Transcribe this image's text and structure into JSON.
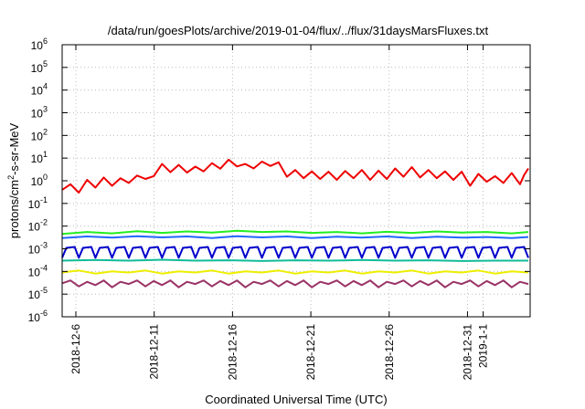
{
  "chart_data": {
    "type": "line",
    "title": "/data/run/goesPlots/archive/2019-01-04/flux/../flux/31daysMarsFluxes.txt",
    "xlabel": "Coordinated Universal Time (UTC)",
    "ylabel": {
      "base": "protons/cm",
      "sup": "2",
      "rest": "-s-sr-MeV"
    },
    "yscale": "log",
    "ylim": [
      1e-06,
      1000000.0
    ],
    "xlim": [
      "2018-12-05T03:00",
      "2019-01-04T00:00"
    ],
    "grid": true,
    "y_ticks": [
      {
        "value": 1e-06,
        "mantissa": "10",
        "exp": "-6"
      },
      {
        "value": 1e-05,
        "mantissa": "10",
        "exp": "-5"
      },
      {
        "value": 0.0001,
        "mantissa": "10",
        "exp": "-4"
      },
      {
        "value": 0.001,
        "mantissa": "10",
        "exp": "-3"
      },
      {
        "value": 0.01,
        "mantissa": "10",
        "exp": "-2"
      },
      {
        "value": 0.1,
        "mantissa": "10",
        "exp": "-1"
      },
      {
        "value": 1.0,
        "mantissa": "10",
        "exp": "0"
      },
      {
        "value": 10.0,
        "mantissa": "10",
        "exp": "1"
      },
      {
        "value": 100.0,
        "mantissa": "10",
        "exp": "2"
      },
      {
        "value": 1000.0,
        "mantissa": "10",
        "exp": "3"
      },
      {
        "value": 10000.0,
        "mantissa": "10",
        "exp": "4"
      },
      {
        "value": 100000.0,
        "mantissa": "10",
        "exp": "5"
      },
      {
        "value": 1000000.0,
        "mantissa": "10",
        "exp": "6"
      }
    ],
    "x_ticks": [
      {
        "date": "2018-12-06",
        "label": "2018-12-6"
      },
      {
        "date": "2018-12-11",
        "label": "2018-12-11"
      },
      {
        "date": "2018-12-16",
        "label": "2018-12-16"
      },
      {
        "date": "2018-12-21",
        "label": "2018-12-21"
      },
      {
        "date": "2018-12-26",
        "label": "2018-12-26"
      },
      {
        "date": "2018-12-31",
        "label": "2018-12-31"
      },
      {
        "date": "2019-01-01",
        "label": "2019-1-1"
      }
    ],
    "series": [
      {
        "color": "#ee0000",
        "width": 2,
        "values": [
          [
            0,
            0.4
          ],
          [
            2,
            0.7
          ],
          [
            4,
            0.3
          ],
          [
            6,
            1.1
          ],
          [
            8,
            0.5
          ],
          [
            10,
            1.4
          ],
          [
            12,
            0.6
          ],
          [
            14,
            1.3
          ],
          [
            16,
            0.8
          ],
          [
            18,
            1.7
          ],
          [
            20,
            1.2
          ],
          [
            22,
            1.6
          ],
          [
            24,
            5.5
          ],
          [
            26,
            2.4
          ],
          [
            28,
            5.0
          ],
          [
            30,
            2.3
          ],
          [
            32,
            4.2
          ],
          [
            34,
            2.6
          ],
          [
            36,
            6.0
          ],
          [
            38,
            3.4
          ],
          [
            40,
            8.5
          ],
          [
            42,
            4.3
          ],
          [
            44,
            5.5
          ],
          [
            46,
            3.5
          ],
          [
            48,
            7.0
          ],
          [
            50,
            4.5
          ],
          [
            52,
            6.5
          ],
          [
            54,
            1.5
          ],
          [
            56,
            3.0
          ],
          [
            58,
            1.3
          ],
          [
            60,
            2.6
          ],
          [
            62,
            1.2
          ],
          [
            64,
            2.5
          ],
          [
            66,
            1.1
          ],
          [
            68,
            2.7
          ],
          [
            70,
            1.3
          ],
          [
            72,
            3.0
          ],
          [
            74,
            1.1
          ],
          [
            76,
            2.8
          ],
          [
            78,
            1.2
          ],
          [
            80,
            3.5
          ],
          [
            82,
            1.5
          ],
          [
            84,
            4.0
          ],
          [
            86,
            1.4
          ],
          [
            88,
            3.0
          ],
          [
            90,
            1.3
          ],
          [
            92,
            2.6
          ],
          [
            94,
            1.1
          ],
          [
            96,
            2.5
          ],
          [
            98,
            0.6
          ],
          [
            100,
            2.0
          ],
          [
            102,
            0.9
          ],
          [
            104,
            1.6
          ],
          [
            106,
            0.8
          ],
          [
            108,
            2.2
          ],
          [
            110,
            0.7
          ],
          [
            111,
            1.8
          ],
          [
            112,
            3.5
          ]
        ]
      },
      {
        "color": "#22ee22",
        "width": 2,
        "values": [
          [
            0,
            0.0045
          ],
          [
            6,
            0.0055
          ],
          [
            12,
            0.0048
          ],
          [
            18,
            0.006
          ],
          [
            24,
            0.005
          ],
          [
            30,
            0.0058
          ],
          [
            36,
            0.0052
          ],
          [
            42,
            0.0062
          ],
          [
            48,
            0.0055
          ],
          [
            54,
            0.0058
          ],
          [
            60,
            0.005
          ],
          [
            66,
            0.0055
          ],
          [
            72,
            0.0048
          ],
          [
            78,
            0.0056
          ],
          [
            84,
            0.005
          ],
          [
            90,
            0.0058
          ],
          [
            96,
            0.0052
          ],
          [
            102,
            0.0055
          ],
          [
            108,
            0.0048
          ],
          [
            112,
            0.0055
          ]
        ]
      },
      {
        "color": "#2266ff",
        "width": 2,
        "values": [
          [
            0,
            0.003
          ],
          [
            6,
            0.0035
          ],
          [
            12,
            0.0031
          ],
          [
            18,
            0.0036
          ],
          [
            24,
            0.0032
          ],
          [
            30,
            0.0035
          ],
          [
            36,
            0.003
          ],
          [
            42,
            0.0036
          ],
          [
            48,
            0.0032
          ],
          [
            54,
            0.0035
          ],
          [
            60,
            0.003
          ],
          [
            66,
            0.0034
          ],
          [
            72,
            0.0031
          ],
          [
            78,
            0.0035
          ],
          [
            84,
            0.003
          ],
          [
            90,
            0.0034
          ],
          [
            96,
            0.0031
          ],
          [
            102,
            0.0033
          ],
          [
            108,
            0.003
          ],
          [
            112,
            0.0033
          ]
        ]
      },
      {
        "color": "#0000cc",
        "width": 2,
        "values": [
          [
            0,
            0.0004
          ],
          [
            1,
            0.0011
          ],
          [
            3,
            0.0012
          ],
          [
            4,
            0.0004
          ],
          [
            5,
            0.0011
          ],
          [
            7,
            0.0012
          ],
          [
            8,
            0.0004
          ],
          [
            9,
            0.0011
          ],
          [
            11,
            0.0012
          ],
          [
            12,
            0.0004
          ],
          [
            13,
            0.0011
          ],
          [
            15,
            0.0012
          ],
          [
            16,
            0.0004
          ],
          [
            17,
            0.0011
          ],
          [
            19,
            0.0012
          ],
          [
            20,
            0.0004
          ],
          [
            21,
            0.0011
          ],
          [
            23,
            0.0012
          ],
          [
            24,
            0.0004
          ],
          [
            25,
            0.0011
          ],
          [
            27,
            0.0012
          ],
          [
            28,
            0.0004
          ],
          [
            29,
            0.0011
          ],
          [
            31,
            0.0012
          ],
          [
            32,
            0.0004
          ],
          [
            33,
            0.0011
          ],
          [
            35,
            0.0012
          ],
          [
            36,
            0.0004
          ],
          [
            37,
            0.0011
          ],
          [
            39,
            0.0012
          ],
          [
            40,
            0.0004
          ],
          [
            41,
            0.0011
          ],
          [
            43,
            0.0012
          ],
          [
            44,
            0.0004
          ],
          [
            45,
            0.0011
          ],
          [
            47,
            0.0012
          ],
          [
            48,
            0.0004
          ],
          [
            49,
            0.0011
          ],
          [
            51,
            0.0012
          ],
          [
            52,
            0.0004
          ],
          [
            53,
            0.0011
          ],
          [
            55,
            0.0012
          ],
          [
            56,
            0.0004
          ],
          [
            57,
            0.0011
          ],
          [
            59,
            0.0012
          ],
          [
            60,
            0.0004
          ],
          [
            61,
            0.0011
          ],
          [
            63,
            0.0012
          ],
          [
            64,
            0.0004
          ],
          [
            65,
            0.0011
          ],
          [
            67,
            0.0012
          ],
          [
            68,
            0.0004
          ],
          [
            69,
            0.0011
          ],
          [
            71,
            0.0012
          ],
          [
            72,
            0.0004
          ],
          [
            73,
            0.0011
          ],
          [
            75,
            0.0012
          ],
          [
            76,
            0.0004
          ],
          [
            77,
            0.0011
          ],
          [
            79,
            0.0012
          ],
          [
            80,
            0.0004
          ],
          [
            81,
            0.0011
          ],
          [
            83,
            0.0012
          ],
          [
            84,
            0.0004
          ],
          [
            85,
            0.0011
          ],
          [
            87,
            0.0012
          ],
          [
            88,
            0.0004
          ],
          [
            89,
            0.0011
          ],
          [
            91,
            0.0012
          ],
          [
            92,
            0.0004
          ],
          [
            93,
            0.0011
          ],
          [
            95,
            0.0012
          ],
          [
            96,
            0.0004
          ],
          [
            97,
            0.0011
          ],
          [
            99,
            0.0012
          ],
          [
            100,
            0.0004
          ],
          [
            101,
            0.0011
          ],
          [
            103,
            0.0012
          ],
          [
            104,
            0.0004
          ],
          [
            105,
            0.0011
          ],
          [
            107,
            0.0012
          ],
          [
            108,
            0.0004
          ],
          [
            109,
            0.0011
          ],
          [
            111,
            0.0012
          ],
          [
            112,
            0.0004
          ]
        ]
      },
      {
        "color": "#11bb99",
        "width": 2,
        "values": [
          [
            0,
            0.0003
          ],
          [
            8,
            0.00032
          ],
          [
            16,
            0.0003
          ],
          [
            24,
            0.00033
          ],
          [
            32,
            0.0003
          ],
          [
            40,
            0.00031
          ],
          [
            48,
            0.00029
          ],
          [
            56,
            0.00031
          ],
          [
            64,
            0.0003
          ],
          [
            72,
            0.00032
          ],
          [
            80,
            0.0003
          ],
          [
            88,
            0.00031
          ],
          [
            96,
            0.00029
          ],
          [
            104,
            0.0003
          ],
          [
            112,
            0.0003
          ]
        ]
      },
      {
        "color": "#eeee00",
        "width": 2,
        "values": [
          [
            0,
            9e-05
          ],
          [
            4,
            0.00011
          ],
          [
            8,
            8e-05
          ],
          [
            12,
            0.0001
          ],
          [
            16,
            9e-05
          ],
          [
            20,
            0.00011
          ],
          [
            24,
            8e-05
          ],
          [
            28,
            0.0001
          ],
          [
            32,
            9e-05
          ],
          [
            36,
            0.00011
          ],
          [
            40,
            8e-05
          ],
          [
            44,
            0.0001
          ],
          [
            48,
            9e-05
          ],
          [
            52,
            0.00011
          ],
          [
            56,
            8e-05
          ],
          [
            60,
            0.0001
          ],
          [
            64,
            9e-05
          ],
          [
            68,
            0.00011
          ],
          [
            72,
            8e-05
          ],
          [
            76,
            0.0001
          ],
          [
            80,
            9e-05
          ],
          [
            84,
            0.00011
          ],
          [
            88,
            8e-05
          ],
          [
            92,
            0.0001
          ],
          [
            96,
            9e-05
          ],
          [
            100,
            0.00011
          ],
          [
            104,
            8e-05
          ],
          [
            108,
            0.0001
          ],
          [
            112,
            9e-05
          ]
        ]
      },
      {
        "color": "#993366",
        "width": 2,
        "values": [
          [
            0,
            3e-05
          ],
          [
            2,
            4e-05
          ],
          [
            4,
            2.2e-05
          ],
          [
            6,
            3.5e-05
          ],
          [
            8,
            2.5e-05
          ],
          [
            10,
            4e-05
          ],
          [
            12,
            2e-05
          ],
          [
            14,
            3.5e-05
          ],
          [
            16,
            2.8e-05
          ],
          [
            18,
            4e-05
          ],
          [
            20,
            2.2e-05
          ],
          [
            22,
            3.8e-05
          ],
          [
            24,
            2.5e-05
          ],
          [
            26,
            4e-05
          ],
          [
            28,
            2e-05
          ],
          [
            30,
            3.5e-05
          ],
          [
            32,
            2.8e-05
          ],
          [
            34,
            4e-05
          ],
          [
            36,
            2.2e-05
          ],
          [
            38,
            3.8e-05
          ],
          [
            40,
            2.5e-05
          ],
          [
            42,
            4e-05
          ],
          [
            44,
            2e-05
          ],
          [
            46,
            3.5e-05
          ],
          [
            48,
            2.8e-05
          ],
          [
            50,
            4e-05
          ],
          [
            52,
            2.2e-05
          ],
          [
            54,
            3.8e-05
          ],
          [
            56,
            2.5e-05
          ],
          [
            58,
            4e-05
          ],
          [
            60,
            2e-05
          ],
          [
            62,
            3.5e-05
          ],
          [
            64,
            2.8e-05
          ],
          [
            66,
            4e-05
          ],
          [
            68,
            2.2e-05
          ],
          [
            70,
            3.8e-05
          ],
          [
            72,
            2.5e-05
          ],
          [
            74,
            4e-05
          ],
          [
            76,
            2e-05
          ],
          [
            78,
            3.5e-05
          ],
          [
            80,
            2.8e-05
          ],
          [
            82,
            4e-05
          ],
          [
            84,
            2.2e-05
          ],
          [
            86,
            3.8e-05
          ],
          [
            88,
            2.5e-05
          ],
          [
            90,
            4e-05
          ],
          [
            92,
            2e-05
          ],
          [
            94,
            3.5e-05
          ],
          [
            96,
            2.8e-05
          ],
          [
            98,
            4e-05
          ],
          [
            100,
            2.2e-05
          ],
          [
            102,
            3.8e-05
          ],
          [
            104,
            2.5e-05
          ],
          [
            106,
            4e-05
          ],
          [
            108,
            2e-05
          ],
          [
            110,
            3.5e-05
          ],
          [
            112,
            2.8e-05
          ]
        ]
      }
    ]
  }
}
